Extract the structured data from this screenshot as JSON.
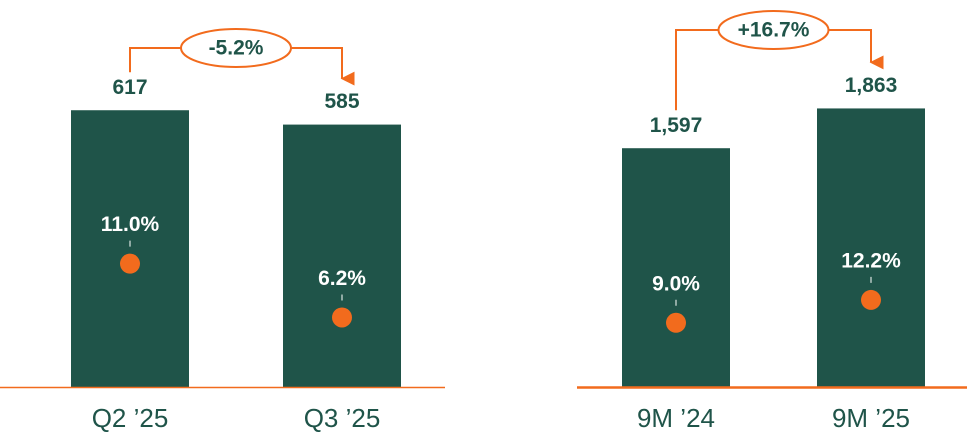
{
  "chart_data": [
    {
      "type": "bar",
      "categories": [
        "Q2 ’25",
        "Q3 ’25"
      ],
      "values": [
        617,
        585
      ],
      "color": "#1f5449",
      "ylim": [
        0,
        700
      ],
      "series": [
        {
          "color": "#f26b1d",
          "values": [
            11.0,
            6.2
          ],
          "value_labels": [
            "11.0%",
            "6.2%"
          ],
          "axis": "y2"
        }
      ],
      "y2lim": [
        0,
        28
      ],
      "annotation": "-5.2%"
    },
    {
      "type": "bar",
      "categories": [
        "9M ’24",
        "9M ’25"
      ],
      "values": [
        1597,
        1863
      ],
      "value_labels": [
        "1,597",
        "1,863"
      ],
      "color": "#1f5449",
      "ylim": [
        0,
        2100
      ],
      "series": [
        {
          "color": "#f26b1d",
          "values": [
            9.0,
            12.2
          ],
          "value_labels": [
            "9.0%",
            "12.2%"
          ],
          "axis": "y2"
        }
      ],
      "y2lim": [
        0,
        44
      ],
      "annotation": "+16.7%"
    }
  ]
}
